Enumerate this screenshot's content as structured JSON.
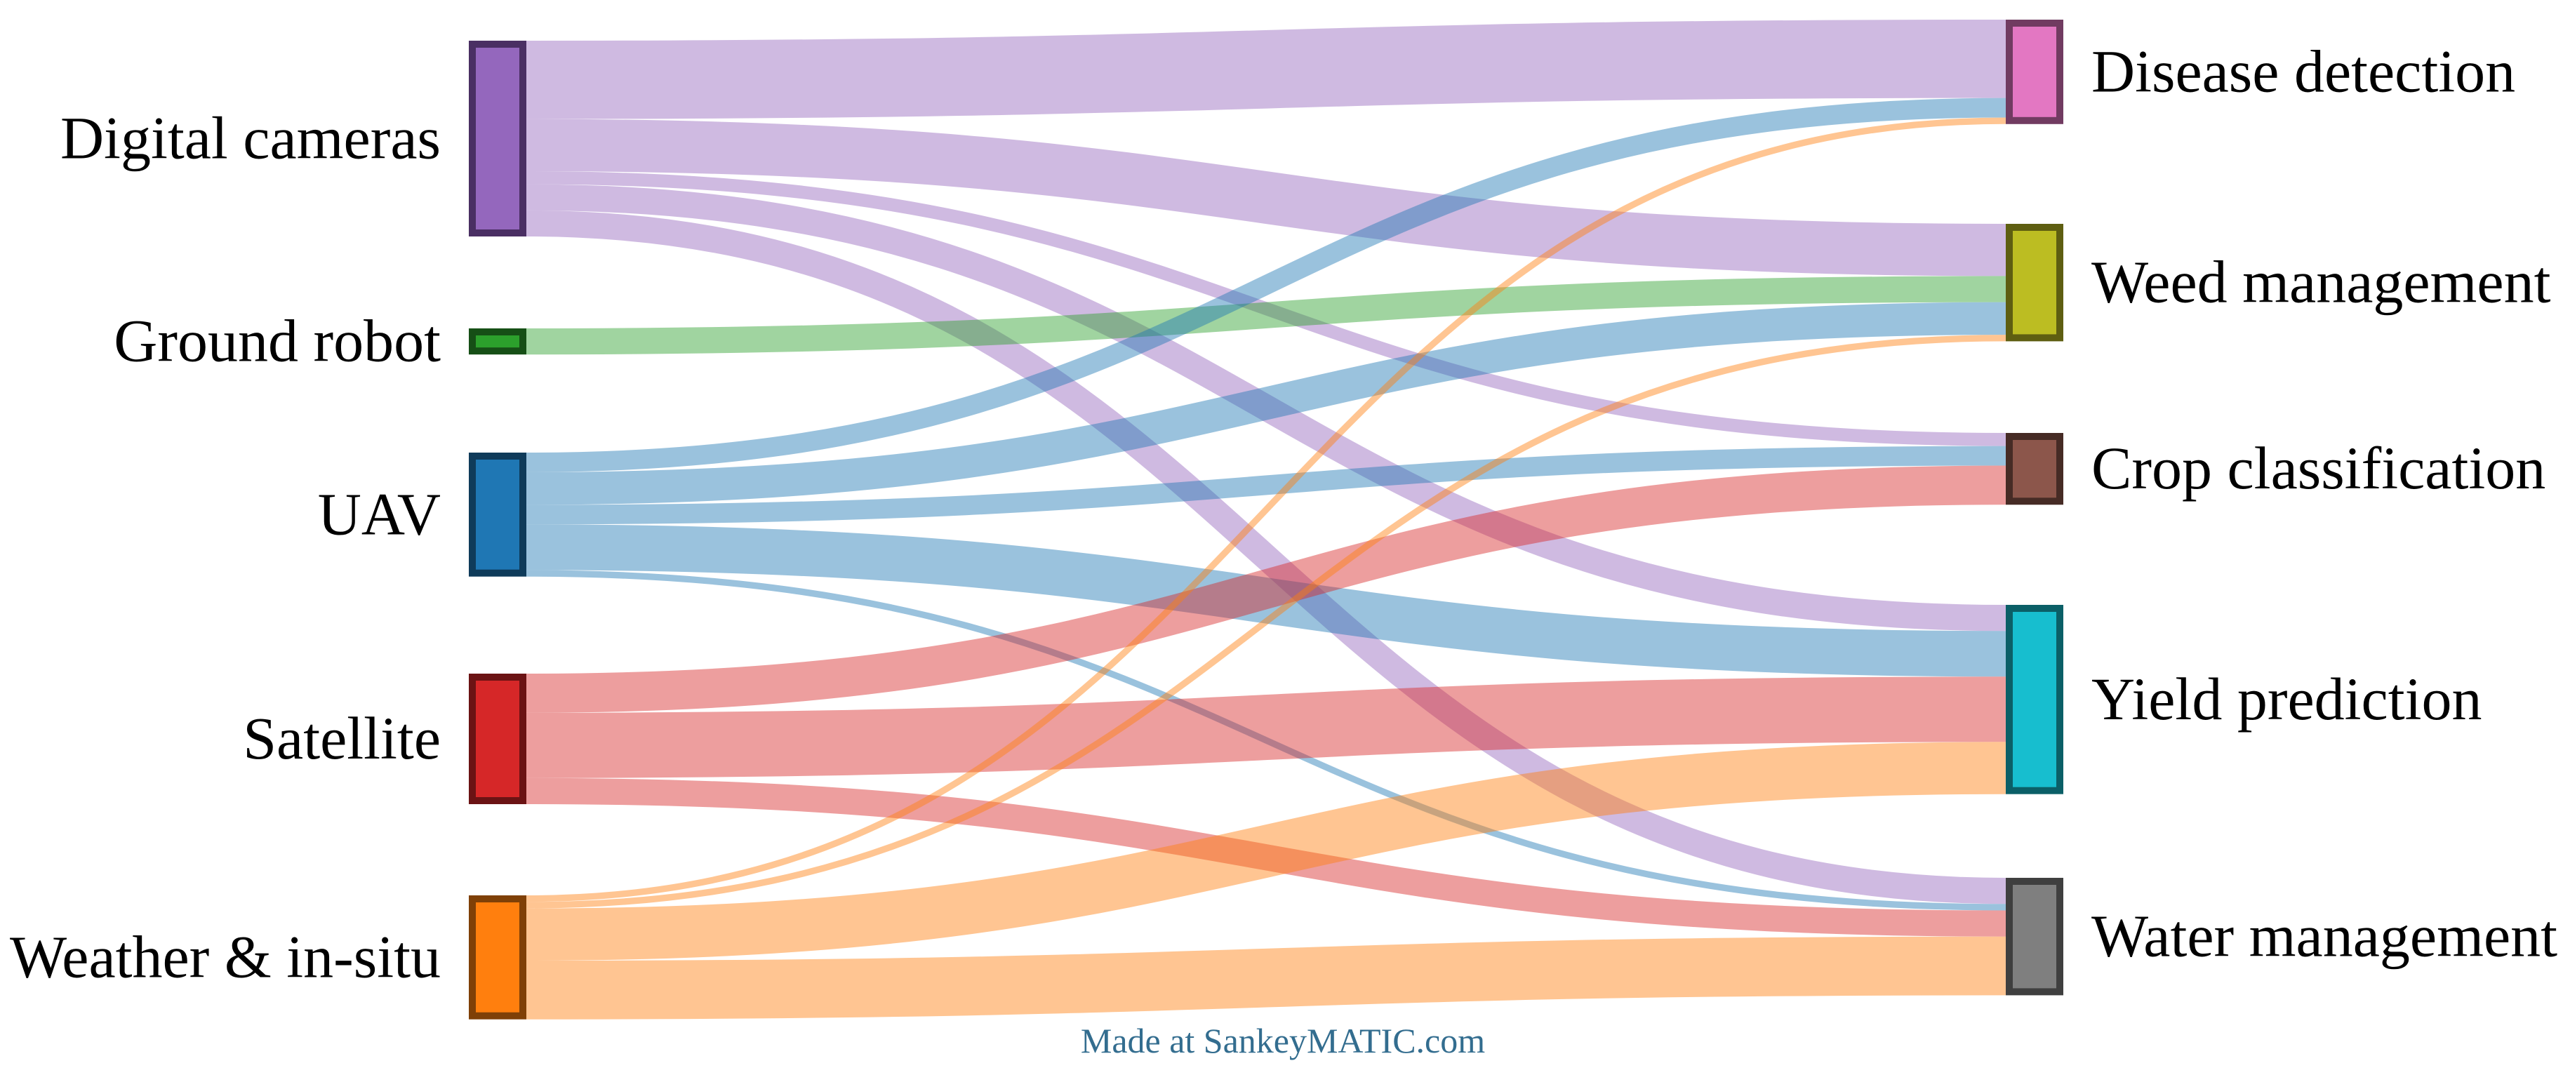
{
  "chart_data": {
    "type": "sankey",
    "sources": [
      {
        "name": "Digital cameras",
        "color": "#9467bd",
        "border": "#4a2f63"
      },
      {
        "name": "Ground robot",
        "color": "#2ca02c",
        "border": "#164f16"
      },
      {
        "name": "UAV",
        "color": "#1f77b4",
        "border": "#0f3b5a"
      },
      {
        "name": "Satellite",
        "color": "#d62728",
        "border": "#6b1314"
      },
      {
        "name": "Weather & in-situ",
        "color": "#ff7f0e",
        "border": "#7f4007"
      }
    ],
    "targets": [
      {
        "name": "Disease detection",
        "color": "#e377c2",
        "border": "#713b61"
      },
      {
        "name": "Weed management",
        "color": "#bcbd22",
        "border": "#5e5e11"
      },
      {
        "name": "Crop classification",
        "color": "#8c564b",
        "border": "#462b25"
      },
      {
        "name": "Yield prediction",
        "color": "#17becf",
        "border": "#0b5f67"
      },
      {
        "name": "Water management",
        "color": "#7f7f7f",
        "border": "#3f3f3f"
      }
    ],
    "flows": [
      {
        "from": "Digital cameras",
        "to": "Disease detection",
        "value": 12
      },
      {
        "from": "Digital cameras",
        "to": "Weed management",
        "value": 8
      },
      {
        "from": "Digital cameras",
        "to": "Crop classification",
        "value": 2
      },
      {
        "from": "Digital cameras",
        "to": "Yield prediction",
        "value": 4
      },
      {
        "from": "Digital cameras",
        "to": "Water management",
        "value": 4
      },
      {
        "from": "Ground robot",
        "to": "Weed management",
        "value": 4
      },
      {
        "from": "UAV",
        "to": "Disease detection",
        "value": 3
      },
      {
        "from": "UAV",
        "to": "Weed management",
        "value": 5
      },
      {
        "from": "UAV",
        "to": "Crop classification",
        "value": 3
      },
      {
        "from": "UAV",
        "to": "Yield prediction",
        "value": 7
      },
      {
        "from": "UAV",
        "to": "Water management",
        "value": 1
      },
      {
        "from": "Satellite",
        "to": "Crop classification",
        "value": 6
      },
      {
        "from": "Satellite",
        "to": "Yield prediction",
        "value": 10
      },
      {
        "from": "Satellite",
        "to": "Water management",
        "value": 4
      },
      {
        "from": "Weather & in-situ",
        "to": "Disease detection",
        "value": 1
      },
      {
        "from": "Weather & in-situ",
        "to": "Weed management",
        "value": 1
      },
      {
        "from": "Weather & in-situ",
        "to": "Yield prediction",
        "value": 8
      },
      {
        "from": "Weather & in-situ",
        "to": "Water management",
        "value": 9
      }
    ]
  },
  "footer": {
    "credit": "Made at SankeyMATIC.com"
  }
}
